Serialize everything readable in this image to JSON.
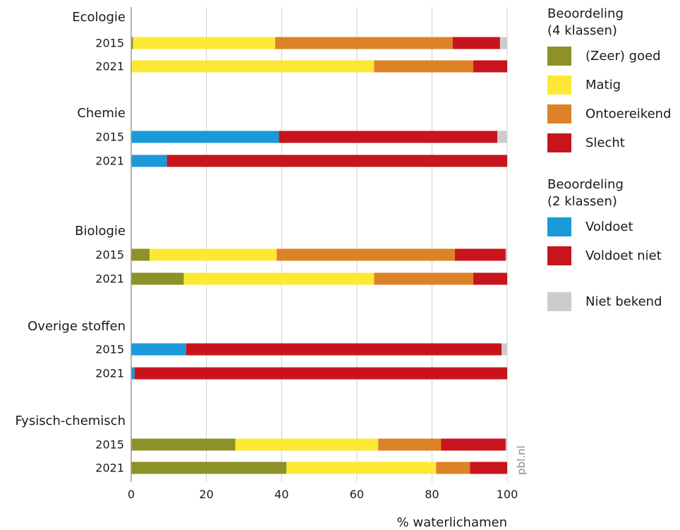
{
  "chart_data": {
    "type": "bar",
    "orientation": "horizontal",
    "stacked": true,
    "xlabel": "% waterlichamen",
    "xlim": [
      0,
      100
    ],
    "xticks": [
      0,
      20,
      40,
      60,
      80,
      100
    ],
    "xtick_labels": [
      "0",
      "20",
      "40",
      "60",
      "80",
      "100"
    ],
    "grid": true,
    "source_note": "pbl.nl",
    "legend_placement": "right",
    "colors": {
      "zeer_goed": "#8c9227",
      "matig": "#fde935",
      "ontoereikend": "#dc8227",
      "slecht": "#c8141c",
      "voldoet": "#1a9ad9",
      "voldoet_niet": "#c8141c",
      "niet_bekend": "#cccccc"
    },
    "groups": [
      {
        "label": "Ecologie",
        "rows": [
          {
            "year": "2015",
            "segments": [
              {
                "key": "zeer_goed",
                "value": 0.5
              },
              {
                "key": "matig",
                "value": 37.8
              },
              {
                "key": "ontoereikend",
                "value": 47.2
              },
              {
                "key": "slecht",
                "value": 12.6
              },
              {
                "key": "niet_bekend",
                "value": 1.9
              }
            ]
          },
          {
            "year": "2021",
            "segments": [
              {
                "key": "matig",
                "value": 64.6
              },
              {
                "key": "ontoereikend",
                "value": 26.4
              },
              {
                "key": "slecht",
                "value": 9.0
              }
            ]
          }
        ]
      },
      {
        "label": "Chemie",
        "rows": [
          {
            "year": "2015",
            "segments": [
              {
                "key": "voldoet",
                "value": 39.3
              },
              {
                "key": "voldoet_niet",
                "value": 58.1
              },
              {
                "key": "niet_bekend",
                "value": 2.6
              }
            ]
          },
          {
            "year": "2021",
            "segments": [
              {
                "key": "voldoet",
                "value": 9.5
              },
              {
                "key": "voldoet_niet",
                "value": 90.5
              }
            ]
          }
        ]
      },
      {
        "label": "Biologie",
        "rows": [
          {
            "year": "2015",
            "segments": [
              {
                "key": "zeer_goed",
                "value": 4.9
              },
              {
                "key": "matig",
                "value": 33.8
              },
              {
                "key": "ontoereikend",
                "value": 47.4
              },
              {
                "key": "slecht",
                "value": 13.5
              },
              {
                "key": "niet_bekend",
                "value": 0.4
              }
            ]
          },
          {
            "year": "2021",
            "segments": [
              {
                "key": "zeer_goed",
                "value": 14.0
              },
              {
                "key": "matig",
                "value": 50.6
              },
              {
                "key": "ontoereikend",
                "value": 26.4
              },
              {
                "key": "slecht",
                "value": 9.0
              }
            ]
          }
        ]
      },
      {
        "label": "Overige stoffen",
        "rows": [
          {
            "year": "2015",
            "segments": [
              {
                "key": "voldoet",
                "value": 14.6
              },
              {
                "key": "voldoet_niet",
                "value": 83.9
              },
              {
                "key": "niet_bekend",
                "value": 1.5
              }
            ]
          },
          {
            "year": "2021",
            "segments": [
              {
                "key": "voldoet",
                "value": 0.9
              },
              {
                "key": "voldoet_niet",
                "value": 99.1
              }
            ]
          }
        ]
      },
      {
        "label": "Fysisch-chemisch",
        "rows": [
          {
            "year": "2015",
            "segments": [
              {
                "key": "zeer_goed",
                "value": 27.7
              },
              {
                "key": "matig",
                "value": 38.0
              },
              {
                "key": "ontoereikend",
                "value": 16.7
              },
              {
                "key": "slecht",
                "value": 17.2
              },
              {
                "key": "niet_bekend",
                "value": 0.4
              }
            ]
          },
          {
            "year": "2021",
            "segments": [
              {
                "key": "zeer_goed",
                "value": 41.3
              },
              {
                "key": "matig",
                "value": 39.8
              },
              {
                "key": "ontoereikend",
                "value": 9.0
              },
              {
                "key": "slecht",
                "value": 9.9
              }
            ]
          }
        ]
      }
    ]
  },
  "legend": {
    "group1_title_line1": "Beoordeling",
    "group1_title_line2": "(4 klassen)",
    "group1_items": [
      {
        "key": "zeer_goed",
        "label": "(Zeer) goed"
      },
      {
        "key": "matig",
        "label": "Matig"
      },
      {
        "key": "ontoereikend",
        "label": "Ontoereikend"
      },
      {
        "key": "slecht",
        "label": "Slecht"
      }
    ],
    "group2_title_line1": "Beoordeling",
    "group2_title_line2": "(2 klassen)",
    "group2_items": [
      {
        "key": "voldoet",
        "label": "Voldoet"
      },
      {
        "key": "voldoet_niet",
        "label": "Voldoet niet"
      }
    ],
    "group3_items": [
      {
        "key": "niet_bekend",
        "label": "Niet bekend"
      }
    ]
  }
}
